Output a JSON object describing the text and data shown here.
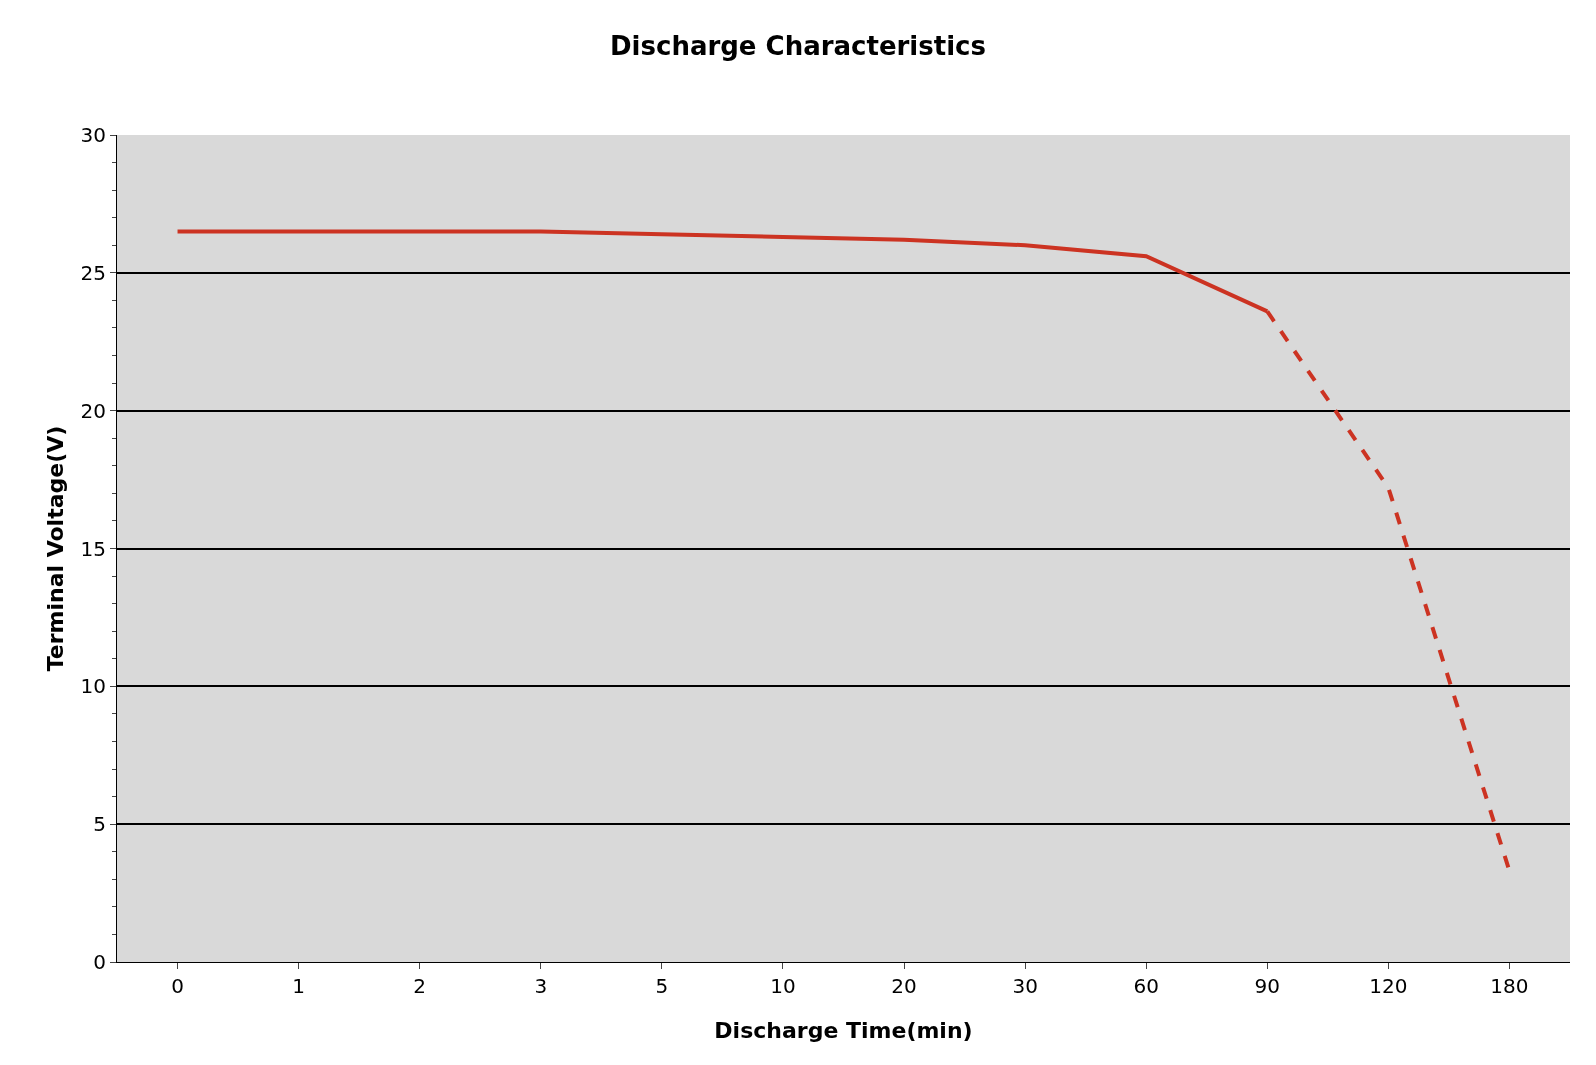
{
  "chart_data": {
    "type": "line",
    "title": "Discharge Characteristics",
    "xlabel": "Discharge Time(min)",
    "ylabel": "Terminal Voltage(V)",
    "categories": [
      "0",
      "1",
      "2",
      "3",
      "5",
      "10",
      "20",
      "30",
      "60",
      "90",
      "120",
      "180"
    ],
    "series": [
      {
        "color": "#cc3322",
        "line_style": "solid",
        "values": [
          26.5,
          26.5,
          26.5,
          26.5,
          26.4,
          26.3,
          26.2,
          26.0,
          25.6,
          23.6,
          null,
          null
        ]
      },
      {
        "color": "#cc3322",
        "line_style": "dashed",
        "values": [
          null,
          null,
          null,
          null,
          null,
          null,
          null,
          null,
          null,
          23.6,
          17.2,
          3.3
        ]
      }
    ],
    "ylim": [
      0,
      30
    ],
    "yticks": [
      0,
      5,
      10,
      15,
      20,
      25,
      30
    ],
    "grid": "y",
    "marker": "none"
  }
}
